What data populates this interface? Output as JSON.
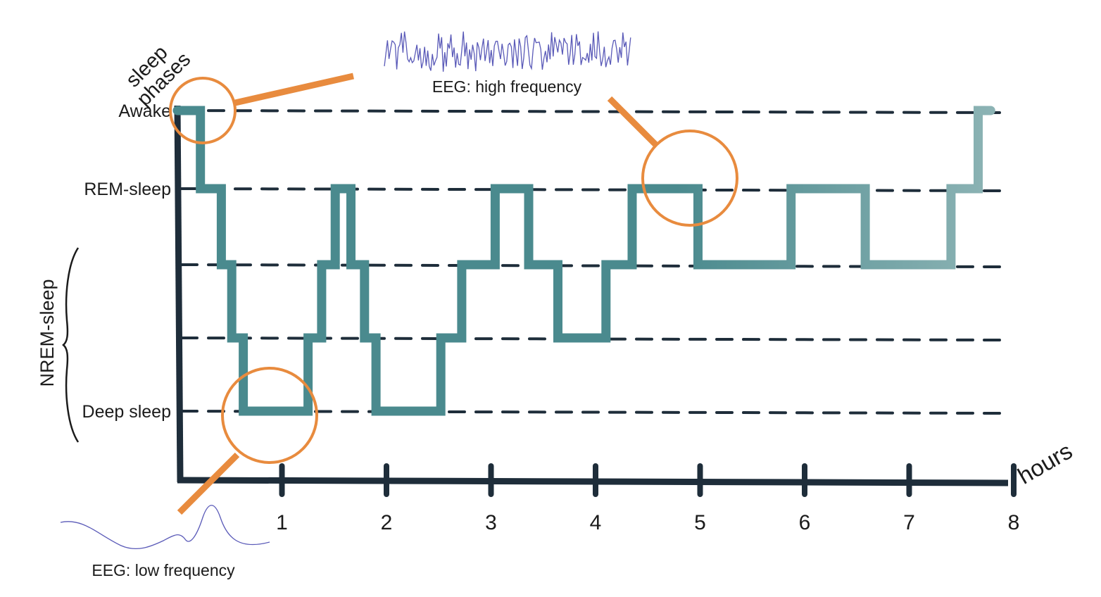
{
  "chart_data": {
    "type": "line",
    "ylabel": "sleep phases",
    "xlabel": "hours",
    "x_ticks": [
      "1",
      "2",
      "3",
      "4",
      "5",
      "6",
      "7",
      "8"
    ],
    "xlim": [
      0,
      8
    ],
    "stage_labels": [
      "Awake",
      "REM-sleep",
      "",
      "",
      "Deep sleep"
    ],
    "group_label": "NREM-sleep",
    "series": [
      {
        "points": [
          [
            0,
            0
          ],
          [
            0.22,
            0
          ],
          [
            0.22,
            1
          ],
          [
            0.42,
            1
          ],
          [
            0.42,
            2
          ],
          [
            0.52,
            2
          ],
          [
            0.52,
            3
          ],
          [
            0.63,
            3
          ],
          [
            0.63,
            4
          ],
          [
            1.25,
            4
          ],
          [
            1.25,
            3
          ],
          [
            1.38,
            3
          ],
          [
            1.38,
            2
          ],
          [
            1.51,
            2
          ],
          [
            1.51,
            1
          ],
          [
            1.66,
            1
          ],
          [
            1.66,
            2
          ],
          [
            1.79,
            2
          ],
          [
            1.79,
            3
          ],
          [
            1.9,
            3
          ],
          [
            1.9,
            4
          ],
          [
            2.52,
            4
          ],
          [
            2.52,
            3
          ],
          [
            2.72,
            3
          ],
          [
            2.72,
            2
          ],
          [
            3.04,
            2
          ],
          [
            3.04,
            1
          ],
          [
            3.36,
            1
          ],
          [
            3.36,
            2
          ],
          [
            3.64,
            2
          ],
          [
            3.64,
            3
          ],
          [
            4.1,
            3
          ],
          [
            4.1,
            2
          ],
          [
            4.35,
            2
          ],
          [
            4.35,
            1
          ],
          [
            4.98,
            1
          ],
          [
            4.98,
            2
          ],
          [
            5.87,
            2
          ],
          [
            5.87,
            1
          ],
          [
            6.58,
            1
          ],
          [
            6.58,
            2
          ],
          [
            7.4,
            2
          ],
          [
            7.4,
            1
          ],
          [
            7.66,
            1
          ],
          [
            7.66,
            0
          ],
          [
            7.78,
            0
          ]
        ]
      }
    ],
    "annotations": [
      "EEG: high frequency",
      "EEG: low frequency"
    ],
    "colors": {
      "axis": "#1e2d3a",
      "line_start": "#4a8a8e",
      "line_end": "#8fb5b6",
      "highlight": "#e88b3e",
      "eeg": "#5a5ab8"
    },
    "grid": "dashed"
  }
}
